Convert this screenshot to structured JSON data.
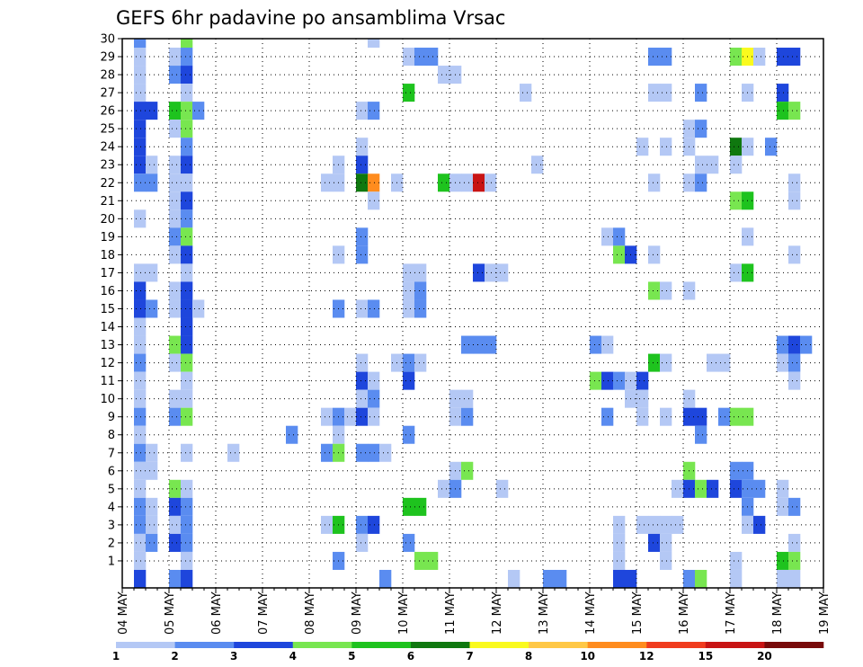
{
  "chart_data": {
    "type": "heatmap",
    "title": "GEFS 6hr padavine po ansamblima Vrsac",
    "xlabel": "",
    "ylabel": "",
    "grid": true,
    "x_ticks": [
      "04 MAY",
      "05 MAY",
      "06 MAY",
      "07 MAY",
      "08 MAY",
      "09 MAY",
      "10 MAY",
      "11 MAY",
      "12 MAY",
      "13 MAY",
      "14 MAY",
      "15 MAY",
      "16 MAY",
      "17 MAY",
      "18 MAY",
      "19 MAY"
    ],
    "y_ticks": [
      1,
      2,
      3,
      4,
      5,
      6,
      7,
      8,
      9,
      10,
      11,
      12,
      13,
      14,
      15,
      16,
      17,
      18,
      19,
      20,
      21,
      22,
      23,
      24,
      25,
      26,
      27,
      28,
      29,
      30
    ],
    "time_steps": 60,
    "members": 30,
    "colorbar": {
      "labels": [
        "1",
        "2",
        "3",
        "4",
        "5",
        "6",
        "7",
        "8",
        "10",
        "12",
        "15",
        "20"
      ],
      "colors": [
        "#b4c8f5",
        "#5a8cf0",
        "#1e46dc",
        "#78e650",
        "#1ec31e",
        "#0f780f",
        "#fafa1e",
        "#ffc846",
        "#ff8c1e",
        "#f03c1e",
        "#c81414",
        "#780a0a"
      ]
    },
    "cells": [
      [
        1,
        29,
        1
      ],
      [
        1,
        28,
        1
      ],
      [
        1,
        27,
        1
      ],
      [
        1,
        26,
        3
      ],
      [
        2,
        26,
        3
      ],
      [
        1,
        25,
        3
      ],
      [
        1,
        24,
        3
      ],
      [
        1,
        23,
        3
      ],
      [
        2,
        23,
        1
      ],
      [
        1,
        22,
        2
      ],
      [
        2,
        22,
        2
      ],
      [
        1,
        20,
        1
      ],
      [
        1,
        17,
        1
      ],
      [
        2,
        17,
        1
      ],
      [
        1,
        16,
        3
      ],
      [
        1,
        15,
        3
      ],
      [
        2,
        15,
        2
      ],
      [
        1,
        14,
        1
      ],
      [
        1,
        13,
        1
      ],
      [
        1,
        12,
        2
      ],
      [
        1,
        11,
        1
      ],
      [
        1,
        10,
        1
      ],
      [
        1,
        9,
        2
      ],
      [
        1,
        8,
        1
      ],
      [
        1,
        7,
        2
      ],
      [
        2,
        7,
        1
      ],
      [
        1,
        6,
        1
      ],
      [
        2,
        6,
        1
      ],
      [
        1,
        5,
        1
      ],
      [
        1,
        4,
        2
      ],
      [
        2,
        4,
        1
      ],
      [
        1,
        3,
        2
      ],
      [
        2,
        3,
        1
      ],
      [
        1,
        2,
        1
      ],
      [
        2,
        2,
        2
      ],
      [
        1,
        1,
        1
      ],
      [
        1,
        0,
        3
      ],
      [
        1,
        30,
        2
      ],
      [
        5,
        30,
        4
      ],
      [
        4,
        29,
        1
      ],
      [
        5,
        29,
        2
      ],
      [
        4,
        28,
        2
      ],
      [
        5,
        28,
        3
      ],
      [
        5,
        27,
        1
      ],
      [
        4,
        26,
        5
      ],
      [
        5,
        26,
        4
      ],
      [
        6,
        26,
        2
      ],
      [
        4,
        25,
        1
      ],
      [
        5,
        25,
        4
      ],
      [
        5,
        24,
        2
      ],
      [
        4,
        23,
        1
      ],
      [
        5,
        23,
        3
      ],
      [
        4,
        22,
        1
      ],
      [
        5,
        22,
        1
      ],
      [
        4,
        21,
        1
      ],
      [
        5,
        21,
        3
      ],
      [
        4,
        20,
        1
      ],
      [
        5,
        20,
        2
      ],
      [
        4,
        19,
        2
      ],
      [
        5,
        19,
        4
      ],
      [
        4,
        18,
        1
      ],
      [
        5,
        18,
        3
      ],
      [
        5,
        17,
        1
      ],
      [
        4,
        16,
        1
      ],
      [
        5,
        16,
        3
      ],
      [
        4,
        15,
        1
      ],
      [
        5,
        15,
        3
      ],
      [
        6,
        15,
        1
      ],
      [
        5,
        14,
        3
      ],
      [
        4,
        13,
        4
      ],
      [
        5,
        13,
        3
      ],
      [
        4,
        12,
        1
      ],
      [
        5,
        12,
        4
      ],
      [
        5,
        11,
        1
      ],
      [
        4,
        10,
        1
      ],
      [
        5,
        10,
        1
      ],
      [
        4,
        9,
        2
      ],
      [
        5,
        9,
        4
      ],
      [
        5,
        7,
        1
      ],
      [
        4,
        5,
        4
      ],
      [
        5,
        5,
        1
      ],
      [
        4,
        4,
        3
      ],
      [
        5,
        4,
        2
      ],
      [
        4,
        3,
        1
      ],
      [
        5,
        3,
        2
      ],
      [
        4,
        2,
        3
      ],
      [
        5,
        2,
        2
      ],
      [
        5,
        1,
        1
      ],
      [
        4,
        0,
        2
      ],
      [
        5,
        0,
        3
      ],
      [
        9,
        7,
        1
      ],
      [
        14,
        8,
        2
      ],
      [
        17,
        22,
        1
      ],
      [
        18,
        22,
        1
      ],
      [
        18,
        23,
        1
      ],
      [
        17,
        9,
        1
      ],
      [
        18,
        9,
        2
      ],
      [
        18,
        8,
        1
      ],
      [
        17,
        7,
        2
      ],
      [
        18,
        7,
        4
      ],
      [
        17,
        3,
        1
      ],
      [
        18,
        3,
        5
      ],
      [
        18,
        1,
        2
      ],
      [
        18,
        15,
        2
      ],
      [
        18,
        18,
        1
      ],
      [
        21,
        30,
        1
      ],
      [
        20,
        26,
        1
      ],
      [
        21,
        26,
        2
      ],
      [
        20,
        24,
        1
      ],
      [
        20,
        23,
        3
      ],
      [
        20,
        22,
        6
      ],
      [
        21,
        22,
        9
      ],
      [
        21,
        21,
        1
      ],
      [
        20,
        19,
        2
      ],
      [
        20,
        18,
        2
      ],
      [
        20,
        15,
        1
      ],
      [
        21,
        15,
        2
      ],
      [
        20,
        12,
        1
      ],
      [
        20,
        11,
        3
      ],
      [
        21,
        11,
        1
      ],
      [
        20,
        10,
        1
      ],
      [
        21,
        10,
        2
      ],
      [
        19,
        9,
        1
      ],
      [
        20,
        9,
        3
      ],
      [
        21,
        9,
        1
      ],
      [
        20,
        7,
        2
      ],
      [
        21,
        7,
        2
      ],
      [
        22,
        7,
        1
      ],
      [
        20,
        3,
        2
      ],
      [
        21,
        3,
        3
      ],
      [
        20,
        2,
        1
      ],
      [
        22,
        0,
        2
      ],
      [
        24,
        29,
        1
      ],
      [
        25,
        29,
        2
      ],
      [
        26,
        29,
        2
      ],
      [
        24,
        27,
        5
      ],
      [
        23,
        22,
        1
      ],
      [
        24,
        17,
        1
      ],
      [
        25,
        17,
        1
      ],
      [
        24,
        16,
        1
      ],
      [
        25,
        16,
        2
      ],
      [
        24,
        15,
        1
      ],
      [
        25,
        15,
        2
      ],
      [
        23,
        12,
        1
      ],
      [
        24,
        12,
        2
      ],
      [
        25,
        12,
        1
      ],
      [
        24,
        11,
        3
      ],
      [
        24,
        8,
        2
      ],
      [
        24,
        2,
        2
      ],
      [
        24,
        4,
        5
      ],
      [
        25,
        4,
        5
      ],
      [
        25,
        1,
        4
      ],
      [
        26,
        1,
        4
      ],
      [
        27,
        22,
        5
      ],
      [
        28,
        22,
        1
      ],
      [
        29,
        22,
        1
      ],
      [
        30,
        22,
        11
      ],
      [
        31,
        22,
        1
      ],
      [
        27,
        28,
        1
      ],
      [
        28,
        28,
        1
      ],
      [
        28,
        9,
        1
      ],
      [
        29,
        9,
        2
      ],
      [
        28,
        10,
        1
      ],
      [
        29,
        10,
        1
      ],
      [
        28,
        6,
        1
      ],
      [
        29,
        6,
        4
      ],
      [
        27,
        5,
        1
      ],
      [
        28,
        5,
        2
      ],
      [
        29,
        13,
        2
      ],
      [
        30,
        13,
        2
      ],
      [
        31,
        13,
        2
      ],
      [
        30,
        17,
        3
      ],
      [
        31,
        17,
        1
      ],
      [
        32,
        17,
        1
      ],
      [
        32,
        5,
        1
      ],
      [
        34,
        27,
        1
      ],
      [
        35,
        23,
        1
      ],
      [
        33,
        0,
        1
      ],
      [
        36,
        0,
        2
      ],
      [
        37,
        0,
        2
      ],
      [
        40,
        13,
        2
      ],
      [
        41,
        13,
        1
      ],
      [
        40,
        11,
        4
      ],
      [
        41,
        11,
        3
      ],
      [
        42,
        11,
        2
      ],
      [
        43,
        11,
        1
      ],
      [
        44,
        11,
        3
      ],
      [
        41,
        19,
        1
      ],
      [
        42,
        19,
        2
      ],
      [
        42,
        18,
        4
      ],
      [
        43,
        18,
        3
      ],
      [
        42,
        3,
        1
      ],
      [
        42,
        2,
        1
      ],
      [
        42,
        1,
        1
      ],
      [
        41,
        9,
        2
      ],
      [
        44,
        9,
        1
      ],
      [
        43,
        10,
        1
      ],
      [
        44,
        10,
        1
      ],
      [
        43,
        0,
        3
      ],
      [
        42,
        0,
        3
      ],
      [
        45,
        29,
        2
      ],
      [
        46,
        29,
        2
      ],
      [
        45,
        27,
        1
      ],
      [
        46,
        27,
        1
      ],
      [
        44,
        24,
        1
      ],
      [
        46,
        24,
        1
      ],
      [
        45,
        22,
        1
      ],
      [
        45,
        18,
        1
      ],
      [
        45,
        16,
        4
      ],
      [
        46,
        16,
        1
      ],
      [
        45,
        12,
        5
      ],
      [
        46,
        12,
        1
      ],
      [
        44,
        3,
        1
      ],
      [
        45,
        3,
        1
      ],
      [
        46,
        3,
        1
      ],
      [
        45,
        2,
        3
      ],
      [
        46,
        2,
        1
      ],
      [
        47,
        3,
        1
      ],
      [
        46,
        9,
        1
      ],
      [
        47,
        5,
        1
      ],
      [
        46,
        1,
        1
      ],
      [
        48,
        25,
        1
      ],
      [
        49,
        25,
        2
      ],
      [
        48,
        24,
        1
      ],
      [
        49,
        23,
        1
      ],
      [
        50,
        23,
        1
      ],
      [
        48,
        22,
        1
      ],
      [
        49,
        22,
        2
      ],
      [
        48,
        16,
        1
      ],
      [
        48,
        10,
        1
      ],
      [
        48,
        9,
        3
      ],
      [
        49,
        9,
        3
      ],
      [
        49,
        8,
        2
      ],
      [
        48,
        6,
        4
      ],
      [
        48,
        5,
        3
      ],
      [
        49,
        5,
        4
      ],
      [
        50,
        5,
        3
      ],
      [
        48,
        0,
        2
      ],
      [
        49,
        0,
        4
      ],
      [
        49,
        27,
        2
      ],
      [
        50,
        12,
        1
      ],
      [
        51,
        12,
        1
      ],
      [
        51,
        9,
        2
      ],
      [
        52,
        29,
        4
      ],
      [
        53,
        29,
        7
      ],
      [
        54,
        29,
        1
      ],
      [
        52,
        24,
        6
      ],
      [
        53,
        24,
        1
      ],
      [
        52,
        23,
        1
      ],
      [
        53,
        27,
        1
      ],
      [
        52,
        21,
        4
      ],
      [
        53,
        21,
        5
      ],
      [
        53,
        19,
        1
      ],
      [
        52,
        17,
        1
      ],
      [
        53,
        17,
        5
      ],
      [
        52,
        9,
        4
      ],
      [
        53,
        9,
        4
      ],
      [
        52,
        6,
        2
      ],
      [
        53,
        6,
        2
      ],
      [
        52,
        5,
        3
      ],
      [
        53,
        5,
        2
      ],
      [
        54,
        5,
        2
      ],
      [
        53,
        4,
        2
      ],
      [
        53,
        3,
        1
      ],
      [
        54,
        3,
        3
      ],
      [
        52,
        1,
        1
      ],
      [
        52,
        0,
        1
      ],
      [
        56,
        29,
        3
      ],
      [
        57,
        29,
        3
      ],
      [
        56,
        27,
        3
      ],
      [
        56,
        26,
        5
      ],
      [
        57,
        26,
        4
      ],
      [
        55,
        24,
        2
      ],
      [
        57,
        22,
        1
      ],
      [
        57,
        21,
        1
      ],
      [
        57,
        18,
        1
      ],
      [
        56,
        13,
        2
      ],
      [
        57,
        13,
        3
      ],
      [
        58,
        13,
        2
      ],
      [
        56,
        12,
        1
      ],
      [
        57,
        12,
        2
      ],
      [
        57,
        11,
        1
      ],
      [
        56,
        5,
        1
      ],
      [
        56,
        4,
        1
      ],
      [
        57,
        4,
        2
      ],
      [
        57,
        2,
        1
      ],
      [
        56,
        1,
        5
      ],
      [
        57,
        1,
        4
      ],
      [
        56,
        0,
        1
      ],
      [
        57,
        0,
        1
      ]
    ]
  }
}
